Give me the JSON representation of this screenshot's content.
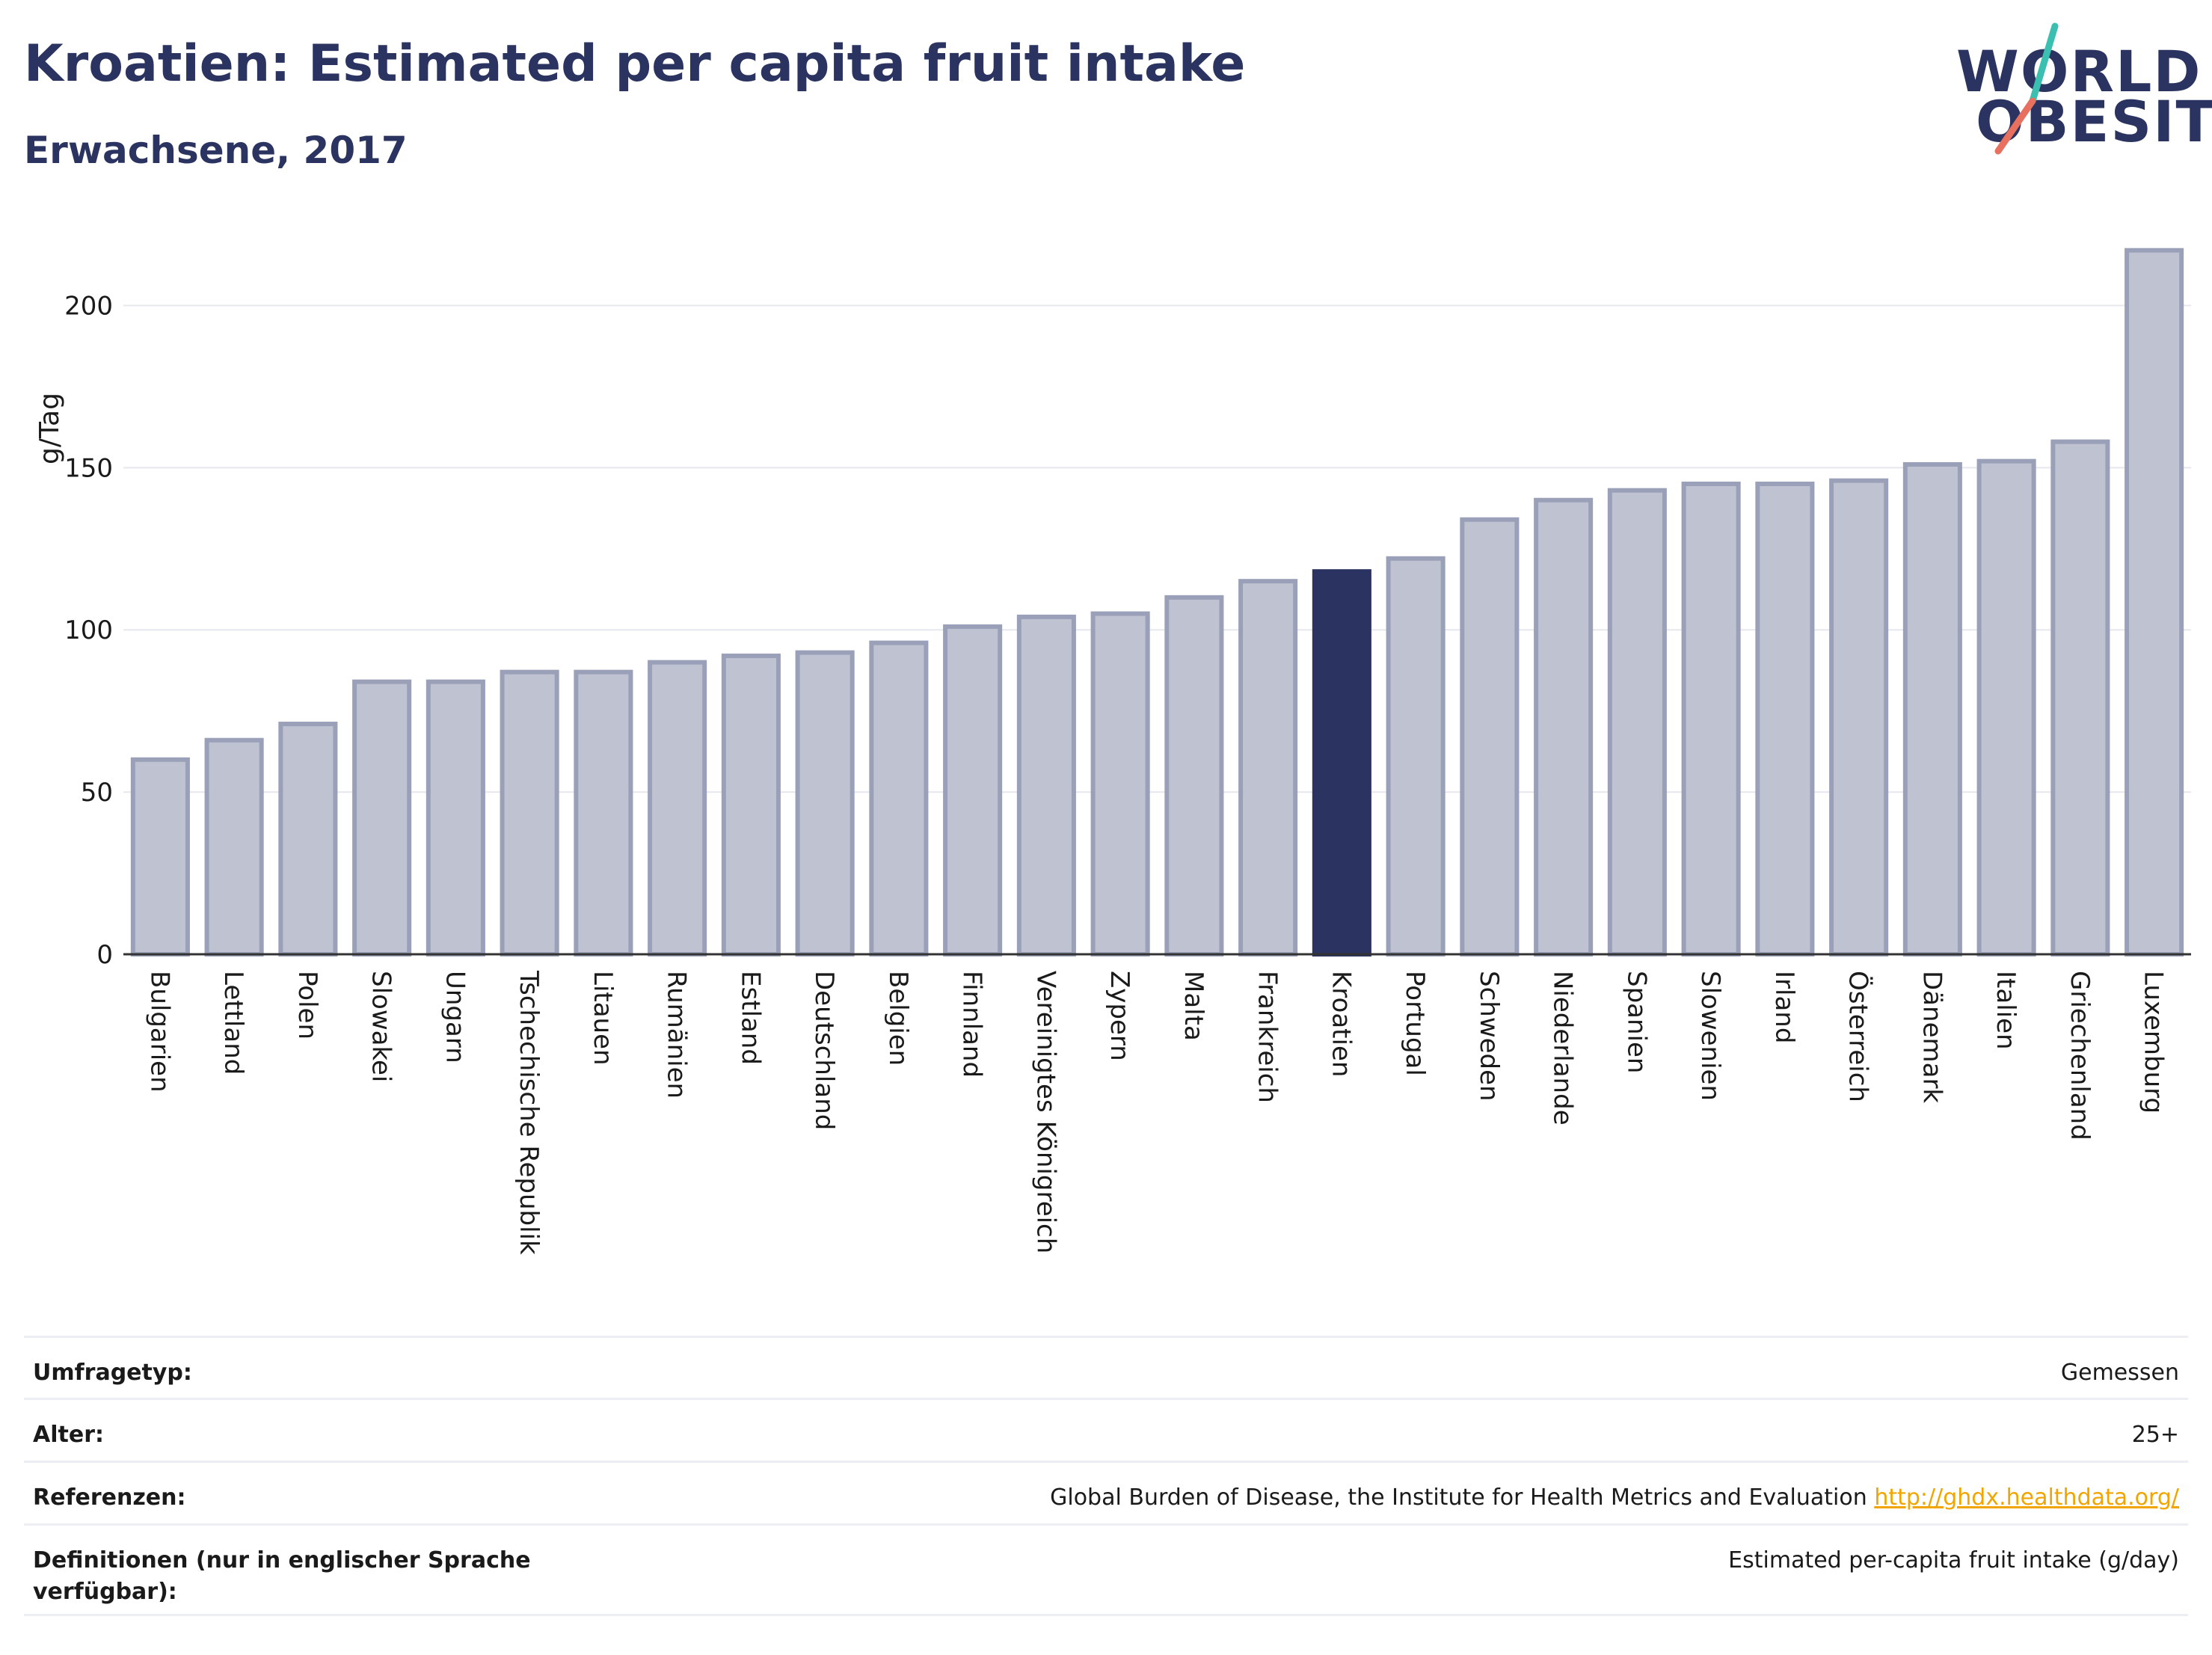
{
  "header": {
    "title": "Kroatien: Estimated per capita fruit intake",
    "subtitle": "Erwachsene, 2017"
  },
  "logo": {
    "line1": "WORLD",
    "line2": "OBESITY",
    "accent_colors": [
      "#3bbfb0",
      "#e8705f"
    ]
  },
  "colors": {
    "highlight": "#2b3460",
    "bar_fill": "#bfc3d1",
    "bar_stroke": "#9aa0b8",
    "gridline": "#e6e8ee",
    "link": "#f0a500"
  },
  "chart_data": {
    "type": "bar",
    "title": "",
    "xlabel": "",
    "ylabel": "g/Tag",
    "ylim": [
      0,
      225
    ],
    "yticks": [
      0,
      50,
      100,
      150,
      200
    ],
    "grid": true,
    "highlight": "Kroatien",
    "categories": [
      "Bulgarien",
      "Lettland",
      "Polen",
      "Slowakei",
      "Ungarn",
      "Tschechische Republik",
      "Litauen",
      "Rumänien",
      "Estland",
      "Deutschland",
      "Belgien",
      "Finnland",
      "Vereinigtes Königreich",
      "Zypern",
      "Malta",
      "Frankreich",
      "Kroatien",
      "Portugal",
      "Schweden",
      "Niederlande",
      "Spanien",
      "Slowenien",
      "Irland",
      "Österreich",
      "Dänemark",
      "Italien",
      "Griechenland",
      "Luxemburg"
    ],
    "values": [
      60,
      66,
      71,
      84,
      84,
      87,
      87,
      90,
      92,
      93,
      96,
      101,
      104,
      105,
      110,
      115,
      118,
      122,
      134,
      140,
      143,
      145,
      145,
      146,
      151,
      152,
      158,
      217
    ]
  },
  "meta": [
    {
      "label": "Umfragetyp:",
      "value": "Gemessen"
    },
    {
      "label": "Alter:",
      "value": "25+"
    },
    {
      "label": "Referenzen:",
      "value": "Global Burden of Disease, the Institute for Health Metrics and Evaluation",
      "link": "http://ghdx.healthdata.org/"
    },
    {
      "label": "Definitionen (nur in englischer Sprache verfügbar):",
      "value": "Estimated per-capita fruit intake (g/day)"
    }
  ]
}
